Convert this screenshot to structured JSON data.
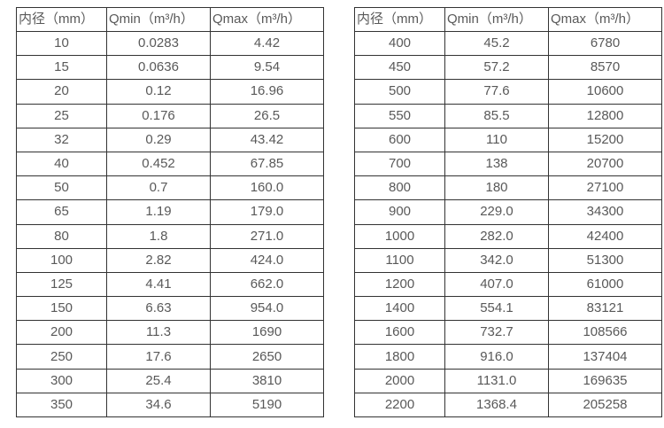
{
  "colors": {
    "background": "#ffffff",
    "text": "#595959",
    "border": "#333333"
  },
  "tables": [
    {
      "id": "small-diameters",
      "headers": [
        "内径（mm）",
        "Qmin（m³/h）",
        "Qmax（m³/h）"
      ],
      "rows": [
        [
          "10",
          "0.0283",
          "4.42"
        ],
        [
          "15",
          "0.0636",
          "9.54"
        ],
        [
          "20",
          "0.12",
          "16.96"
        ],
        [
          "25",
          "0.176",
          "26.5"
        ],
        [
          "32",
          "0.29",
          "43.42"
        ],
        [
          "40",
          "0.452",
          "67.85"
        ],
        [
          "50",
          "0.7",
          "160.0"
        ],
        [
          "65",
          "1.19",
          "179.0"
        ],
        [
          "80",
          "1.8",
          "271.0"
        ],
        [
          "100",
          "2.82",
          "424.0"
        ],
        [
          "125",
          "4.41",
          "662.0"
        ],
        [
          "150",
          "6.63",
          "954.0"
        ],
        [
          "200",
          "11.3",
          "1690"
        ],
        [
          "250",
          "17.6",
          "2650"
        ],
        [
          "300",
          "25.4",
          "3810"
        ],
        [
          "350",
          "34.6",
          "5190"
        ]
      ]
    },
    {
      "id": "large-diameters",
      "headers": [
        "内径（mm）",
        "Qmin（m³/h）",
        "Qmax（m³/h）"
      ],
      "rows": [
        [
          "400",
          "45.2",
          "6780"
        ],
        [
          "450",
          "57.2",
          "8570"
        ],
        [
          "500",
          "77.6",
          "10600"
        ],
        [
          "550",
          "85.5",
          "12800"
        ],
        [
          "600",
          "110",
          "15200"
        ],
        [
          "700",
          "138",
          "20700"
        ],
        [
          "800",
          "180",
          "27100"
        ],
        [
          "900",
          "229.0",
          "34300"
        ],
        [
          "1000",
          "282.0",
          "42400"
        ],
        [
          "1100",
          "342.0",
          "51300"
        ],
        [
          "1200",
          "407.0",
          "61000"
        ],
        [
          "1400",
          "554.1",
          "83121"
        ],
        [
          "1600",
          "732.7",
          "108566"
        ],
        [
          "1800",
          "916.0",
          "137404"
        ],
        [
          "2000",
          "1131.0",
          "169635"
        ],
        [
          "2200",
          "1368.4",
          "205258"
        ]
      ]
    }
  ]
}
